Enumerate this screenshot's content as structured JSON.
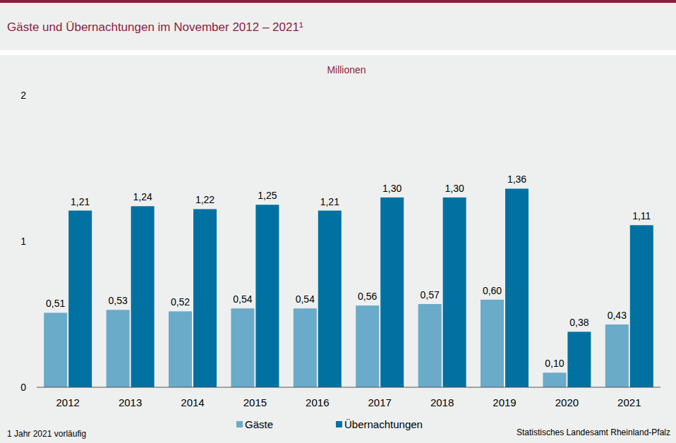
{
  "chart_data": {
    "type": "bar",
    "title": "Gäste und Übernachtungen im November 2012 – 2021¹",
    "subtitle": "Millionen",
    "footnote": "1 Jahr 2021 vorläufig",
    "source": "Statistisches Landesamt Rheinland-Pfalz",
    "categories": [
      "2012",
      "2013",
      "2014",
      "2015",
      "2016",
      "2017",
      "2018",
      "2019",
      "2020",
      "2021"
    ],
    "series": [
      {
        "name": "Gäste",
        "color": "#6aabc9",
        "values": [
          0.51,
          0.53,
          0.52,
          0.54,
          0.54,
          0.56,
          0.57,
          0.6,
          0.1,
          0.43
        ],
        "value_labels": [
          "0,51",
          "0,53",
          "0,52",
          "0,54",
          "0,54",
          "0,56",
          "0,57",
          "0,60",
          "0,10",
          "0,43"
        ]
      },
      {
        "name": "Übernachtungen",
        "color": "#0071a1",
        "values": [
          1.21,
          1.24,
          1.22,
          1.25,
          1.21,
          1.3,
          1.3,
          1.36,
          0.38,
          1.11
        ],
        "value_labels": [
          "1,21",
          "1,24",
          "1,22",
          "1,25",
          "1,21",
          "1,30",
          "1,30",
          "1,36",
          "0,38",
          "1,11"
        ]
      }
    ],
    "ylim": [
      0,
      2
    ],
    "yticks": [
      0,
      1,
      2
    ],
    "grid": false,
    "legend": "bottom",
    "data_labels": true
  }
}
